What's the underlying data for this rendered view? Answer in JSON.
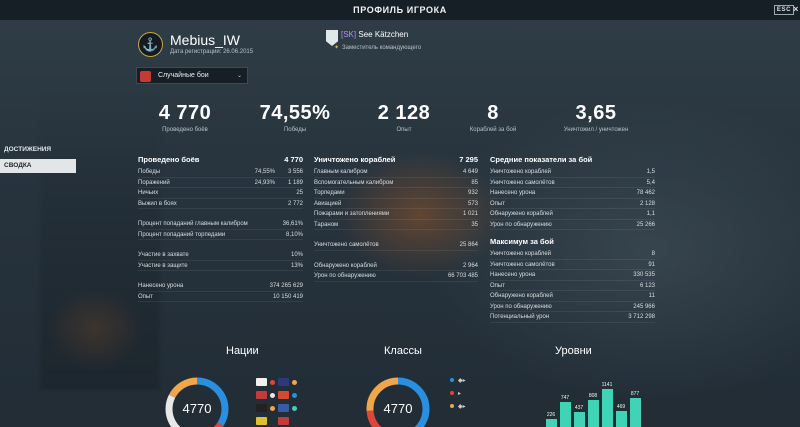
{
  "window": {
    "title": "ПРОФИЛЬ ИГРОКА",
    "esc_label": "ESC",
    "close": "×"
  },
  "player": {
    "name": "Mebius_IW",
    "registration": "Дата регистрации: 26.06.2015"
  },
  "clan": {
    "tag": "[SK]",
    "name": "See Kätzchen",
    "role": "Заместитель командующего"
  },
  "mode": {
    "selected": "Случайные бои",
    "arrow": "⌄"
  },
  "big_stats": [
    {
      "value": "4 770",
      "label": "Проведено боёв"
    },
    {
      "value": "74,55%",
      "label": "Победы"
    },
    {
      "value": "2 128",
      "label": "Опыт"
    },
    {
      "value": "8",
      "label": "Кораблей за бой"
    },
    {
      "value": "3,65",
      "label": "Уничтожил / уничтожен"
    }
  ],
  "nav": {
    "achievements": "ДОСТИЖЕНИЯ",
    "summary": "СВОДКА"
  },
  "col1": {
    "header": "Проведено боёв",
    "header_value": "4 770",
    "rows": [
      {
        "label": "Победы",
        "pct": "74,55%",
        "value": "3 556"
      },
      {
        "label": "Поражений",
        "pct": "24,93%",
        "value": "1 189"
      },
      {
        "label": "Ничьих",
        "pct": "",
        "value": "25"
      },
      {
        "label": "Выжил в боях",
        "pct": "",
        "value": "2 772"
      }
    ],
    "rows2": [
      {
        "label": "Процент попаданий главным калибром",
        "value": "36,61%"
      },
      {
        "label": "Процент попаданий торпедами",
        "value": "8,10%"
      }
    ],
    "rows3": [
      {
        "label": "Участие в захвате",
        "value": "10%"
      },
      {
        "label": "Участие в защите",
        "value": "13%"
      }
    ],
    "rows4": [
      {
        "label": "Нанесено урона",
        "value": "374 265 629"
      },
      {
        "label": "Опыт",
        "value": "10 150 419"
      }
    ]
  },
  "col2": {
    "header": "Уничтожено кораблей",
    "header_value": "7 295",
    "rows": [
      {
        "label": "Главным калибром",
        "value": "4 649"
      },
      {
        "label": "Вспомогательным калибром",
        "value": "85"
      },
      {
        "label": "Торпедами",
        "value": "932"
      },
      {
        "label": "Авиацией",
        "value": "573"
      },
      {
        "label": "Пожарами и затоплениями",
        "value": "1 021"
      },
      {
        "label": "Тараном",
        "value": "35"
      }
    ],
    "rows2": [
      {
        "label": "Уничтожено самолётов",
        "value": "25 864"
      }
    ],
    "rows3": [
      {
        "label": "Обнаружено кораблей",
        "value": "2 964"
      },
      {
        "label": "Урон по обнаружению",
        "value": "66 703 485"
      }
    ]
  },
  "col3": {
    "header": "Средние показатели за бой",
    "rows": [
      {
        "label": "Уничтожено кораблей",
        "value": "1,5"
      },
      {
        "label": "Уничтожено самолётов",
        "value": "5,4"
      },
      {
        "label": "Нанесено урона",
        "value": "78 462"
      },
      {
        "label": "Опыт",
        "value": "2 128"
      },
      {
        "label": "Обнаружено кораблей",
        "value": "1,1"
      },
      {
        "label": "Урон по обнаружению",
        "value": "25 266"
      }
    ],
    "header2": "Максимум за бой",
    "rows2": [
      {
        "label": "Уничтожено кораблей",
        "value": "8"
      },
      {
        "label": "Уничтожено самолётов",
        "value": "91"
      },
      {
        "label": "Нанесено урона",
        "value": "330 535"
      },
      {
        "label": "Опыт",
        "value": "6 123"
      },
      {
        "label": "Обнаружено кораблей",
        "value": "11"
      },
      {
        "label": "Урон по обнаружению",
        "value": "245 966"
      },
      {
        "label": "Потенциальный урон",
        "value": "3 712 298"
      }
    ]
  },
  "bottom": {
    "nations_title": "Нации",
    "classes_title": "Классы",
    "levels_title": "Уровни",
    "nations_total": "4770",
    "classes_total": "4770",
    "level_bars": [
      {
        "label": "226",
        "value": 226
      },
      {
        "label": "747",
        "value": 747
      },
      {
        "label": "437",
        "value": 437
      },
      {
        "label": "808",
        "value": 808
      },
      {
        "label": "1141",
        "value": 1141
      },
      {
        "label": "469",
        "value": 469
      },
      {
        "label": "877",
        "value": 877
      }
    ],
    "colors": {
      "bar": "#40d3b5",
      "blue": "#2a8fe0",
      "red": "#e0453a",
      "orange": "#f0a64a",
      "white": "#e8e8e8"
    }
  }
}
